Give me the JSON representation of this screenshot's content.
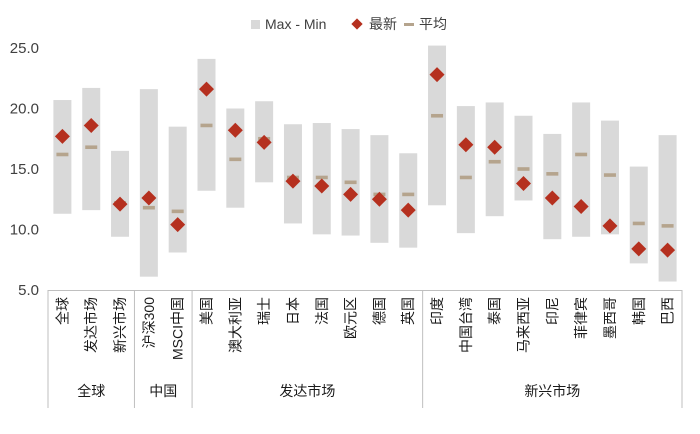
{
  "chart_data": {
    "type": "range_bar_with_markers",
    "title": "",
    "ylim": [
      5,
      25
    ],
    "yticks": [
      "5.0",
      "10.0",
      "15.0",
      "20.0",
      "25.0"
    ],
    "ytick_values": [
      5,
      10,
      15,
      20,
      25
    ],
    "legend": {
      "range_label": "Max - Min",
      "latest_label": "最新",
      "average_label": "平均"
    },
    "colors": {
      "range": "#d9d9d9",
      "latest": "#b5301f",
      "average": "#b5a48d",
      "axis": "#bfbfbf",
      "text": "#404040"
    },
    "categories": [
      "全球",
      "发达市场",
      "新兴市场",
      "沪深300",
      "MSCI中国",
      "美国",
      "澳大利亚",
      "瑞士",
      "日本",
      "法国",
      "欧元区",
      "德国",
      "英国",
      "印度",
      "中国台湾",
      "泰国",
      "马来西亚",
      "印尼",
      "菲律宾",
      "墨西哥",
      "韩国",
      "巴西"
    ],
    "series": [
      {
        "name": "Max",
        "values": [
          20.7,
          21.7,
          16.5,
          21.6,
          18.5,
          24.1,
          20.0,
          20.6,
          18.7,
          18.8,
          18.3,
          17.8,
          16.3,
          25.2,
          20.2,
          20.5,
          19.4,
          17.9,
          20.5,
          19.0,
          15.2,
          17.8
        ]
      },
      {
        "name": "Min",
        "values": [
          11.3,
          11.6,
          9.4,
          6.1,
          8.1,
          13.2,
          11.8,
          13.9,
          10.5,
          9.6,
          9.5,
          8.9,
          8.5,
          12.0,
          9.7,
          11.1,
          12.4,
          9.2,
          9.4,
          9.6,
          7.2,
          5.7
        ]
      },
      {
        "name": "最新",
        "values": [
          17.7,
          18.6,
          12.1,
          12.6,
          10.4,
          21.6,
          18.2,
          17.2,
          14.0,
          13.6,
          12.9,
          12.5,
          11.6,
          22.8,
          17.0,
          16.8,
          13.8,
          12.6,
          11.9,
          10.3,
          8.4,
          8.3
        ]
      },
      {
        "name": "平均",
        "values": [
          16.2,
          16.8,
          12.2,
          11.8,
          11.5,
          18.6,
          15.8,
          17.5,
          14.3,
          14.3,
          13.9,
          12.9,
          12.9,
          19.4,
          14.3,
          15.6,
          15.0,
          14.6,
          16.2,
          14.5,
          10.5,
          10.3
        ]
      }
    ],
    "groups": [
      {
        "label": "全球",
        "count": 3
      },
      {
        "label": "中国",
        "count": 2
      },
      {
        "label": "发达市场",
        "count": 8
      },
      {
        "label": "新兴市场",
        "count": 9
      }
    ]
  }
}
